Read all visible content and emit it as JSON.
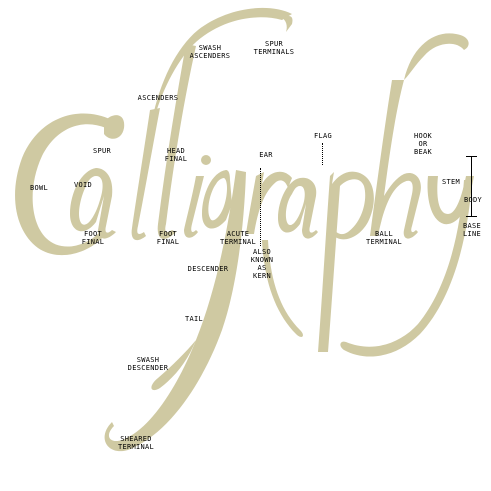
{
  "title_word": "Calligraphy",
  "colors": {
    "ink": "#cfc9a2",
    "label": "#000000"
  },
  "labels": {
    "swash_ascenders": "SWASH\nASCENDERS",
    "spur_terminals": "SPUR\nTERMINALS",
    "ascenders": "ASCENDERS",
    "spur": "SPUR",
    "head_final": "HEAD\nFINAL",
    "ear": "EAR",
    "flag": "FLAG",
    "hook_or_beak": "HOOK\nOR\nBEAK",
    "bowl": "BOWL",
    "void": "VOID",
    "stem": "STEM",
    "body": "BODY",
    "base_line": "BASE\nLINE",
    "foot_final_1": "FOOT\nFINAL",
    "foot_final_2": "FOOT\nFINAL",
    "acute_terminal": "ACUTE\nTERMINAL",
    "ball_terminal": "BALL\nTERMINAL",
    "also_known_as_kern": "ALSO\nKNOWN\nAS\nKERN",
    "descender": "DESCENDER",
    "tail": "TAIL",
    "swash_descender": "SWASH\nDESCENDER",
    "sheared_terminal": "SHEARED\nTERMINAL"
  }
}
